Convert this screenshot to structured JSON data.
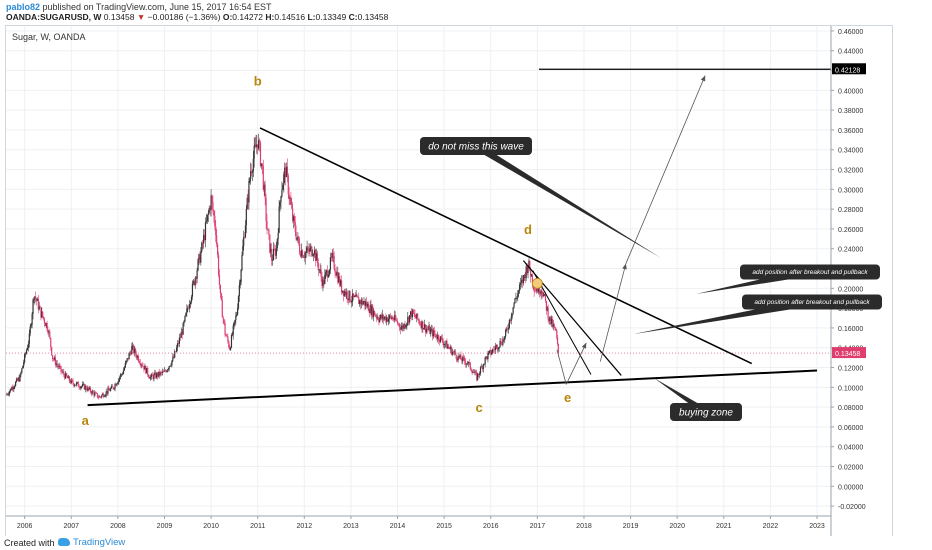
{
  "header": {
    "user": "pablo82",
    "published": "published on TradingView.com, June 15, 2017 16:54 EST",
    "symbol": "OANDA:SUGARUSD, W",
    "last": "0.13458",
    "change": "−0.00186 (−1.36%)",
    "open_label": "O:",
    "open": "0.14272",
    "high_label": "H:",
    "high": "0.14516",
    "low_label": "L:",
    "low": "0.13349",
    "close_label": "C:",
    "close": "0.13458"
  },
  "chart_title": "Sugar, W, OANDA",
  "footer": {
    "created": "Created with",
    "brand": "TradingView"
  },
  "colors": {
    "up": "#333333",
    "down": "#e03c6e",
    "line": "#000000",
    "wave_label": "#b8860b",
    "price_badge": "#e03c6e",
    "grid": "#eef0f3"
  },
  "chart_data": {
    "type": "candlestick",
    "ylim": [
      -0.03,
      0.465
    ],
    "xlim": [
      2005.6,
      2023.3
    ],
    "x_ticks": [
      "2006",
      "2007",
      "2008",
      "2009",
      "2010",
      "2011",
      "2012",
      "2013",
      "2014",
      "2015",
      "2016",
      "2017",
      "2018",
      "2019",
      "2020",
      "2021",
      "2022",
      "2023"
    ],
    "y_ticks": [
      "-0.02000",
      "0.00000",
      "0.02000",
      "0.04000",
      "0.06000",
      "0.08000",
      "0.10000",
      "0.12000",
      "0.14000",
      "0.16000",
      "0.18000",
      "0.20000",
      "0.22000",
      "0.24000",
      "0.26000",
      "0.28000",
      "0.30000",
      "0.32000",
      "0.34000",
      "0.36000",
      "0.38000",
      "0.40000",
      "0.42000",
      "0.44000",
      "0.46000"
    ],
    "last_price": "0.13458",
    "target_price": "0.42128",
    "price_path": [
      [
        2005.6,
        0.092
      ],
      [
        2005.9,
        0.11
      ],
      [
        2006.1,
        0.15
      ],
      [
        2006.2,
        0.195
      ],
      [
        2006.35,
        0.175
      ],
      [
        2006.5,
        0.16
      ],
      [
        2006.6,
        0.13
      ],
      [
        2006.8,
        0.115
      ],
      [
        2007.0,
        0.105
      ],
      [
        2007.3,
        0.1
      ],
      [
        2007.6,
        0.09
      ],
      [
        2007.9,
        0.1
      ],
      [
        2008.1,
        0.115
      ],
      [
        2008.3,
        0.14
      ],
      [
        2008.5,
        0.125
      ],
      [
        2008.7,
        0.11
      ],
      [
        2009.0,
        0.115
      ],
      [
        2009.2,
        0.13
      ],
      [
        2009.4,
        0.16
      ],
      [
        2009.6,
        0.2
      ],
      [
        2009.8,
        0.24
      ],
      [
        2010.0,
        0.29
      ],
      [
        2010.1,
        0.26
      ],
      [
        2010.2,
        0.19
      ],
      [
        2010.3,
        0.155
      ],
      [
        2010.4,
        0.14
      ],
      [
        2010.55,
        0.175
      ],
      [
        2010.7,
        0.25
      ],
      [
        2010.85,
        0.32
      ],
      [
        2011.0,
        0.35
      ],
      [
        2011.1,
        0.32
      ],
      [
        2011.2,
        0.26
      ],
      [
        2011.3,
        0.23
      ],
      [
        2011.4,
        0.24
      ],
      [
        2011.5,
        0.3
      ],
      [
        2011.6,
        0.32
      ],
      [
        2011.75,
        0.27
      ],
      [
        2011.9,
        0.24
      ],
      [
        2012.0,
        0.235
      ],
      [
        2012.2,
        0.24
      ],
      [
        2012.4,
        0.205
      ],
      [
        2012.6,
        0.23
      ],
      [
        2012.8,
        0.2
      ],
      [
        2013.0,
        0.19
      ],
      [
        2013.3,
        0.185
      ],
      [
        2013.6,
        0.17
      ],
      [
        2013.9,
        0.17
      ],
      [
        2014.1,
        0.16
      ],
      [
        2014.3,
        0.175
      ],
      [
        2014.6,
        0.16
      ],
      [
        2014.9,
        0.15
      ],
      [
        2015.1,
        0.14
      ],
      [
        2015.3,
        0.13
      ],
      [
        2015.5,
        0.125
      ],
      [
        2015.7,
        0.11
      ],
      [
        2015.9,
        0.13
      ],
      [
        2016.1,
        0.14
      ],
      [
        2016.3,
        0.15
      ],
      [
        2016.5,
        0.185
      ],
      [
        2016.7,
        0.21
      ],
      [
        2016.8,
        0.225
      ],
      [
        2016.95,
        0.2
      ],
      [
        2017.1,
        0.2
      ],
      [
        2017.25,
        0.17
      ],
      [
        2017.4,
        0.155
      ],
      [
        2017.45,
        0.134
      ]
    ],
    "annotations": [
      {
        "kind": "wave_label",
        "text": "a",
        "x": 2007.3,
        "y": 0.062
      },
      {
        "kind": "wave_label",
        "text": "b",
        "x": 2011.0,
        "y": 0.405
      },
      {
        "kind": "wave_label",
        "text": "c",
        "x": 2015.75,
        "y": 0.075
      },
      {
        "kind": "wave_label",
        "text": "d",
        "x": 2016.8,
        "y": 0.255
      },
      {
        "kind": "wave_label",
        "text": "e",
        "x": 2017.65,
        "y": 0.085
      },
      {
        "kind": "callout",
        "text": "do not miss this wave"
      },
      {
        "kind": "callout",
        "text": "add position after breakout and pullback"
      },
      {
        "kind": "callout",
        "text": "add position after breakout and pullback"
      },
      {
        "kind": "callout",
        "text": "buying zone"
      }
    ]
  }
}
